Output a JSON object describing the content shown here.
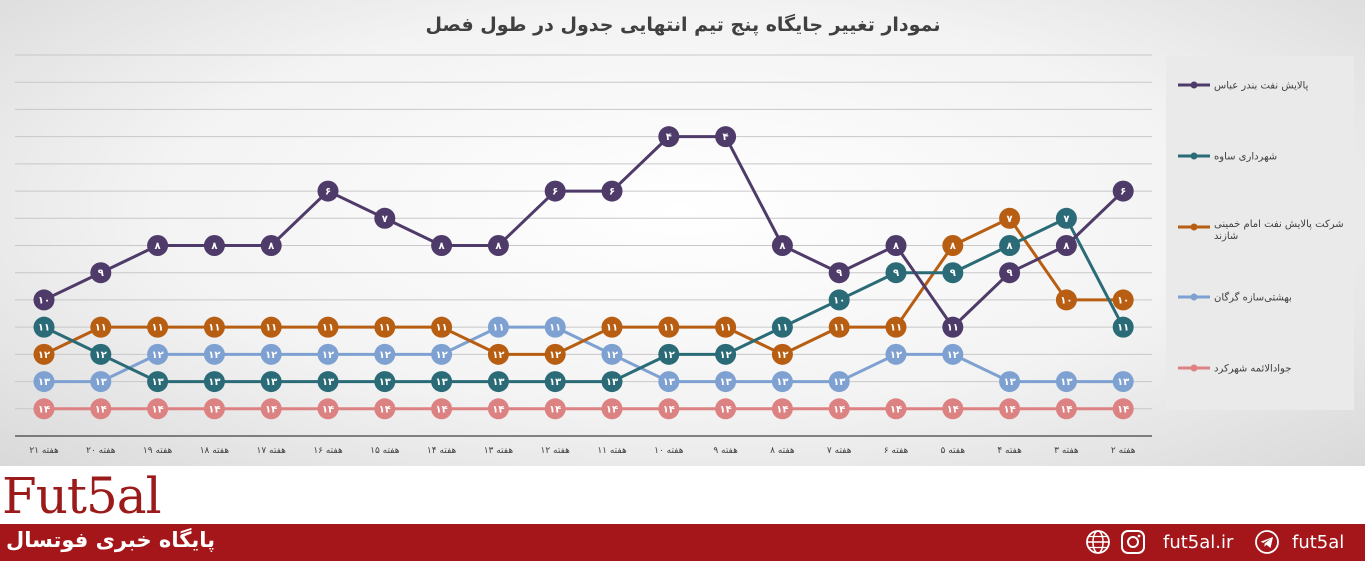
{
  "chart_data": {
    "type": "line",
    "title": "نمودار تغییر جایگاه پنج تیم انتهایی جدول در طول فصل",
    "categories": [
      "هفته ۲۱",
      "هفته ۲۰",
      "هفته ۱۹",
      "هفته ۱۸",
      "هفته ۱۷",
      "هفته ۱۶",
      "هفته ۱۵",
      "هفته ۱۴",
      "هفته ۱۳",
      "هفته ۱۲",
      "هفته ۱۱",
      "هفته ۱۰",
      "هفته ۹",
      "هفته ۸",
      "هفته ۷",
      "هفته ۶",
      "هفته ۵",
      "هفته ۴",
      "هفته ۳",
      "هفته ۲"
    ],
    "yrange": [
      0,
      15
    ],
    "y_reversed": true,
    "grid": true,
    "legend_position": "right",
    "series": [
      {
        "name": "پالایش نفت بندر عباس",
        "color": "#4e3b69",
        "values": [
          10,
          9,
          8,
          8,
          8,
          6,
          7,
          8,
          8,
          6,
          6,
          4,
          4,
          8,
          9,
          8,
          11,
          9,
          8,
          6
        ]
      },
      {
        "name": "شهرداری ساوه",
        "color": "#2a6b77",
        "values": [
          11,
          12,
          13,
          13,
          13,
          13,
          13,
          13,
          13,
          13,
          13,
          12,
          12,
          11,
          10,
          9,
          9,
          8,
          7,
          11
        ]
      },
      {
        "name": "شرکت پالایش نفت امام خمینی شازند",
        "color": "#b85e12",
        "values": [
          12,
          11,
          11,
          11,
          11,
          11,
          11,
          11,
          12,
          12,
          11,
          11,
          11,
          12,
          11,
          11,
          8,
          7,
          10,
          10
        ]
      },
      {
        "name": "بهشتی‌سازه گرگان",
        "color": "#7ea1d1",
        "values": [
          13,
          13,
          12,
          12,
          12,
          12,
          12,
          12,
          11,
          11,
          12,
          13,
          13,
          13,
          13,
          12,
          12,
          13,
          13,
          13
        ]
      },
      {
        "name": "جوادالائمه شهرکرد",
        "color": "#dd8282",
        "values": [
          14,
          14,
          14,
          14,
          14,
          14,
          14,
          14,
          14,
          14,
          14,
          14,
          14,
          14,
          14,
          14,
          14,
          14,
          14,
          14
        ]
      }
    ]
  },
  "brand": {
    "logo": "Fut5al"
  },
  "footer": {
    "site_label": "پایگاه خبری فوتسال",
    "website": "fut5al.ir",
    "telegram": "fut5al",
    "icons": [
      "globe-icon",
      "instagram-icon",
      "telegram-icon"
    ]
  }
}
